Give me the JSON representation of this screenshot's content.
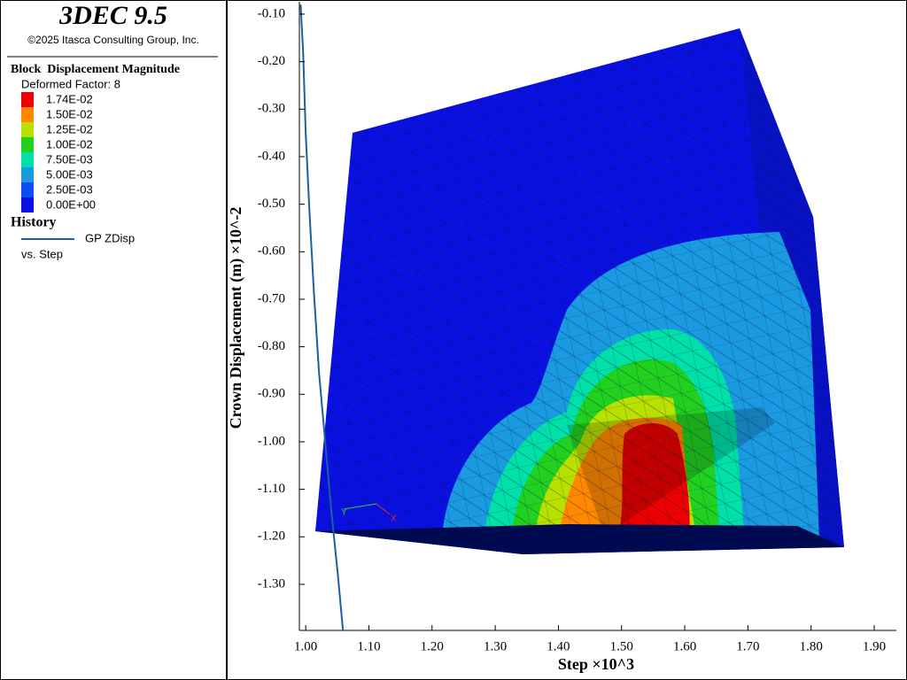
{
  "panel": {
    "title": "3DEC 9.5",
    "copyright": "©2025 Itasca Consulting Group, Inc."
  },
  "contour_legend": {
    "title": "Block  Displacement Magnitude",
    "subtitle": "Deformed Factor: 8",
    "levels": [
      {
        "label": "1.74E-02",
        "color": "#ee0000"
      },
      {
        "label": "1.50E-02",
        "color": "#ff8800"
      },
      {
        "label": "1.25E-02",
        "color": "#b8e000"
      },
      {
        "label": "1.00E-02",
        "color": "#22d020"
      },
      {
        "label": "7.50E-03",
        "color": "#00e0a8"
      },
      {
        "label": "5.00E-03",
        "color": "#1a9ae0"
      },
      {
        "label": "2.50E-03",
        "color": "#0a50f0"
      },
      {
        "label": "0.00E+00",
        "color": "#0a10e0"
      }
    ]
  },
  "history": {
    "title": "History",
    "subtitle": "vs. Step"
  },
  "triad": {
    "y": "Y",
    "x": "X"
  },
  "chart_data": {
    "type": "line",
    "xlabel": "Step ×10^3",
    "ylabel": "Crown Displacement (m) ×10^-2",
    "xlim": [
      0.99,
      1.935
    ],
    "ylim": [
      -1.397,
      -0.074
    ],
    "xticks": [
      {
        "value": 1,
        "label": "1.00"
      },
      {
        "value": 1.1,
        "label": "1.10"
      },
      {
        "value": 1.2,
        "label": "1.20"
      },
      {
        "value": 1.3,
        "label": "1.30"
      },
      {
        "value": 1.4,
        "label": "1.40"
      },
      {
        "value": 1.5,
        "label": "1.50"
      },
      {
        "value": 1.6,
        "label": "1.60"
      },
      {
        "value": 1.7,
        "label": "1.70"
      },
      {
        "value": 1.8,
        "label": "1.80"
      },
      {
        "value": 1.9,
        "label": "1.90"
      }
    ],
    "yticks": [
      {
        "value": -0.1,
        "label": "-0.10"
      },
      {
        "value": -0.2,
        "label": "-0.20"
      },
      {
        "value": -0.3,
        "label": "-0.30"
      },
      {
        "value": -0.4,
        "label": "-0.40"
      },
      {
        "value": -0.5,
        "label": "-0.50"
      },
      {
        "value": -0.6,
        "label": "-0.60"
      },
      {
        "value": -0.7,
        "label": "-0.70"
      },
      {
        "value": -0.8,
        "label": "-0.80"
      },
      {
        "value": -0.9,
        "label": "-0.90"
      },
      {
        "value": -1,
        "label": "-1.00"
      },
      {
        "value": -1.1,
        "label": "-1.10"
      },
      {
        "value": -1.2,
        "label": "-1.20"
      },
      {
        "value": -1.3,
        "label": "-1.30"
      }
    ],
    "x": [
      0.992,
      0.996,
      1.0,
      1.006,
      1.013,
      1.021,
      1.031,
      1.041,
      1.051,
      1.059
    ],
    "series": [
      {
        "name": "GP ZDisp",
        "color": "#1f5f9f",
        "values": [
          -0.08,
          -0.182,
          -0.35,
          -0.517,
          -0.685,
          -0.853,
          -1.002,
          -1.151,
          -1.281,
          -1.397
        ]
      }
    ]
  }
}
